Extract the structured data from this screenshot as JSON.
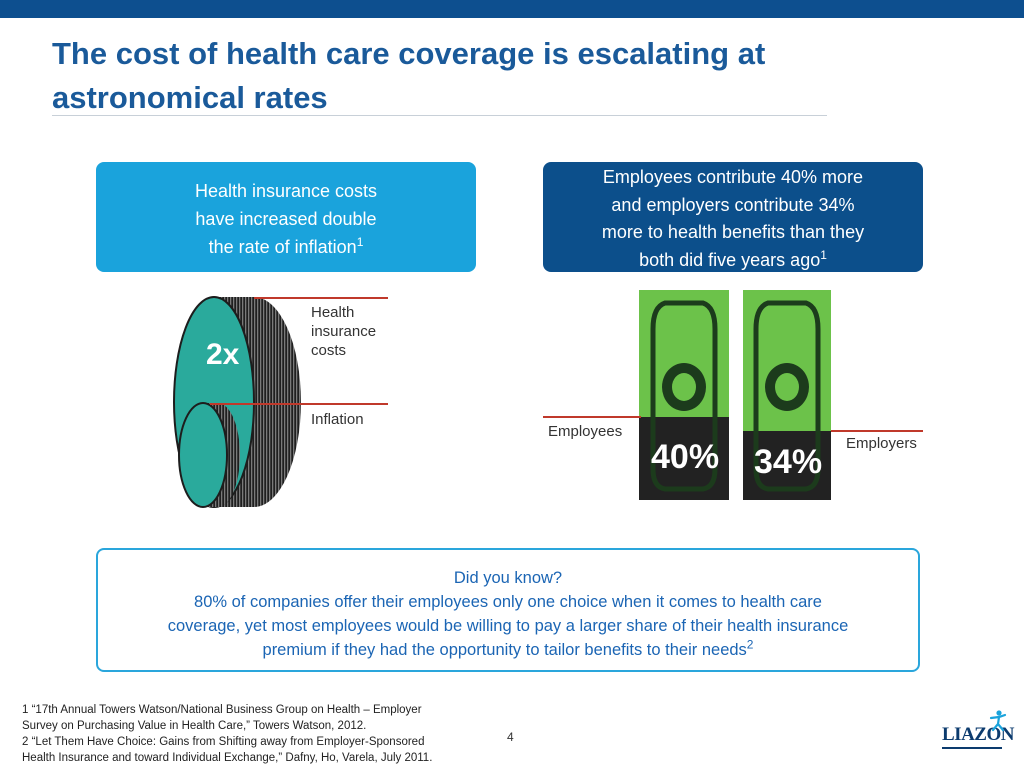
{
  "header": {
    "title_line1": "The cost of health care coverage is escalating at",
    "title_line2": "astronomical rates",
    "bar_color": "#0d4f8f"
  },
  "left_box": {
    "lines": [
      "Health insurance costs",
      "have increased double",
      "the rate of inflation"
    ],
    "footnote_ref": "1"
  },
  "right_box": {
    "lines": [
      "Employees contribute 40% more",
      "and employers contribute 34%",
      "more to health benefits than they",
      "both did five years ago"
    ],
    "footnote_ref": "1"
  },
  "coin_graphic": {
    "multiplier": "2x",
    "health_label_lines": [
      "Health",
      "insurance",
      "costs"
    ],
    "inflation_label": "Inflation",
    "coin_color": "#2aaa9c"
  },
  "bill_graphic": {
    "employees_label": "Employees",
    "employers_label": "Employers",
    "employees_pct": "40%",
    "employers_pct": "34%",
    "bill_color": "#6cc24a"
  },
  "did_you_know": {
    "heading": "Did you know?",
    "lines": [
      "80% of companies offer their employees only one choice when it comes to health care",
      "coverage, yet most employees would be willing to pay a larger share of their health insurance",
      "premium if they had the opportunity to tailor benefits to their needs"
    ],
    "footnote_ref": "2"
  },
  "footnotes": [
    "1 “17th Annual Towers Watson/National Business Group on Health – Employer",
    "Survey on Purchasing Value in Health Care,” Towers Watson, 2012.",
    "2 “Let Them Have Choice: Gains from Shifting away from Employer-Sponsored",
    "Health Insurance and toward Individual Exchange,” Dafny, Ho, Varela, July 2011."
  ],
  "page_number": "4",
  "logo": {
    "text": "LIAZON",
    "icon": "person-figure-icon"
  }
}
